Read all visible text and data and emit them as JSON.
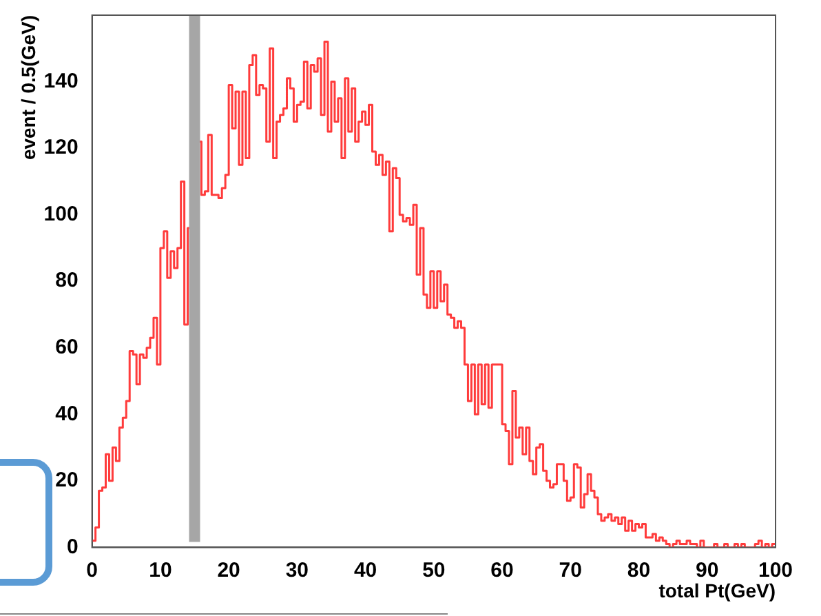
{
  "chart_data": {
    "type": "histogram",
    "xlabel": "total Pt(GeV)",
    "ylabel": "event / 0.5(GeV)",
    "color": "#ff3b3b",
    "bins": [
      0,
      0.5,
      1,
      1.5,
      2,
      2.5,
      3,
      3.5,
      4,
      4.5,
      5,
      5.5,
      6,
      6.5,
      7,
      7.5,
      8,
      8.5,
      9,
      9.5,
      10,
      10.5,
      11,
      11.5,
      12,
      12.5,
      13,
      13.5,
      14,
      14.5,
      15,
      15.5,
      16,
      16.5,
      17,
      17.5,
      18,
      18.5,
      19,
      19.5,
      20,
      20.5,
      21,
      21.5,
      22,
      22.5,
      23,
      23.5,
      24,
      24.5,
      25,
      25.5,
      26,
      26.5,
      27,
      27.5,
      28,
      28.5,
      29,
      29.5,
      30,
      30.5,
      31,
      31.5,
      32,
      32.5,
      33,
      33.5,
      34,
      34.5,
      35,
      35.5,
      36,
      36.5,
      37,
      37.5,
      38,
      38.5,
      39,
      39.5,
      40,
      40.5,
      41,
      41.5,
      42,
      42.5,
      43,
      43.5,
      44,
      44.5,
      45,
      45.5,
      46,
      46.5,
      47,
      47.5,
      48,
      48.5,
      49,
      49.5,
      50,
      50.5,
      51,
      51.5,
      52,
      52.5,
      53,
      53.5,
      54,
      54.5,
      55,
      55.5,
      56,
      56.5,
      57,
      57.5,
      58,
      58.5,
      59,
      59.5,
      60,
      60.5,
      61,
      61.5,
      62,
      62.5,
      63,
      63.5,
      64,
      64.5,
      65,
      65.5,
      66,
      66.5,
      67,
      67.5,
      68,
      68.5,
      69,
      69.5,
      70,
      70.5,
      71,
      71.5,
      72,
      72.5,
      73,
      73.5,
      74,
      74.5,
      75,
      75.5,
      76,
      76.5,
      77,
      77.5,
      78,
      78.5,
      79,
      79.5,
      80,
      80.5,
      81,
      81.5,
      82,
      82.5,
      83,
      83.5,
      84,
      84.5,
      85,
      85.5,
      86,
      86.5,
      87,
      87.5,
      88,
      88.5,
      89,
      89.5,
      90,
      90.5,
      91,
      91.5,
      92,
      92.5,
      93,
      93.5,
      94,
      94.5,
      95,
      95.5,
      96,
      96.5,
      97,
      97.5,
      98,
      98.5,
      99,
      99.5,
      100
    ],
    "values": [
      2,
      6,
      17,
      18,
      28,
      20,
      30,
      26,
      36,
      39,
      44,
      59,
      58,
      49,
      58,
      57,
      60,
      63,
      69,
      55,
      90,
      95,
      81,
      89,
      84,
      90,
      110,
      67,
      96,
      116,
      118,
      122,
      106,
      107,
      124,
      106,
      106,
      105,
      108,
      112,
      139,
      126,
      137,
      115,
      137,
      117,
      145,
      148,
      136,
      139,
      138,
      122,
      150,
      117,
      128,
      130,
      132,
      141,
      138,
      128,
      133,
      134,
      146,
      132,
      145,
      143,
      147,
      130,
      152,
      125,
      140,
      128,
      135,
      117,
      141,
      125,
      138,
      122,
      128,
      131,
      127,
      133,
      119,
      115,
      118,
      112,
      116,
      95,
      114,
      111,
      100,
      98,
      99,
      97,
      103,
      82,
      96,
      76,
      72,
      83,
      72,
      83,
      74,
      79,
      70,
      69,
      66,
      68,
      66,
      55,
      44,
      55,
      40,
      55,
      43,
      55,
      42,
      55,
      55,
      55,
      37,
      35,
      25,
      47,
      33,
      36,
      28,
      36,
      26,
      22,
      30,
      31,
      23,
      20,
      18,
      19,
      25,
      25,
      20,
      14,
      15,
      25,
      24,
      12,
      16,
      22,
      17,
      15,
      10,
      8,
      9,
      10,
      8,
      9,
      7,
      9,
      5,
      8,
      5,
      7,
      6,
      7,
      3,
      3,
      4,
      2,
      3,
      2,
      1,
      0,
      1,
      2,
      1,
      1,
      2,
      1,
      1,
      0,
      2,
      0,
      0,
      0,
      1,
      0,
      0,
      1,
      0,
      0,
      1,
      0,
      1,
      0,
      0,
      0,
      1,
      2,
      0,
      1,
      0,
      1
    ],
    "xlim": [
      0,
      100
    ],
    "ylim": [
      0,
      160
    ],
    "xticks": [
      0,
      10,
      20,
      30,
      40,
      50,
      60,
      70,
      80,
      90,
      100
    ],
    "yticks": [
      0,
      20,
      40,
      60,
      80,
      100,
      120,
      140
    ],
    "ref_lines": [
      {
        "axis": "x",
        "value": 15,
        "color": "#a6a6a6"
      }
    ]
  }
}
